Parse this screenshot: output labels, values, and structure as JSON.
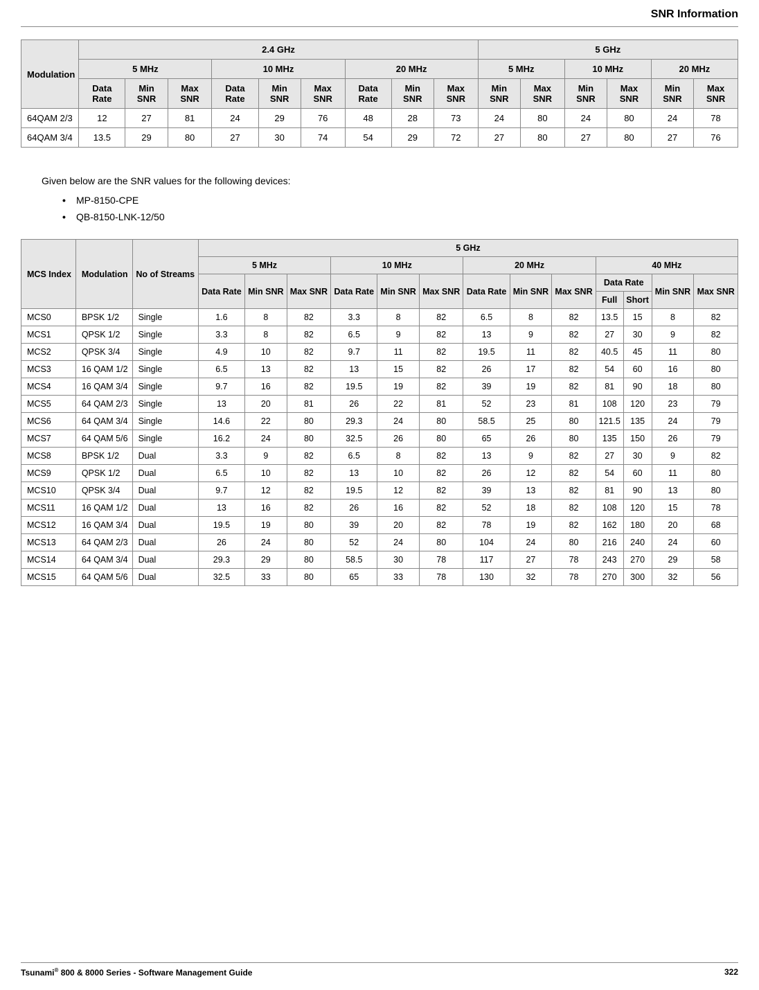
{
  "title": "SNR Information",
  "table1": {
    "top_headers": {
      "modulation": "Modulation",
      "band24": "2.4 GHz",
      "band5": "5 GHz"
    },
    "bw_headers": [
      "5 MHz",
      "10 MHz",
      "20 MHz",
      "5 MHz",
      "10 MHz",
      "20 MHz"
    ],
    "col_headers": {
      "dr": "Data Rate",
      "min": "Min SNR",
      "max": "Max SNR"
    },
    "rows": [
      {
        "mod": "64QAM 2/3",
        "v": [
          "12",
          "27",
          "81",
          "24",
          "29",
          "76",
          "48",
          "28",
          "73",
          "24",
          "80",
          "24",
          "80",
          "24",
          "78"
        ]
      },
      {
        "mod": "64QAM 3/4",
        "v": [
          "13.5",
          "29",
          "80",
          "27",
          "30",
          "74",
          "54",
          "29",
          "72",
          "27",
          "80",
          "27",
          "80",
          "27",
          "76"
        ]
      }
    ]
  },
  "intro": "Given below are the SNR values for the following devices:",
  "devices": [
    "MP-8150-CPE",
    "QB-8150-LNK-12/50"
  ],
  "table2": {
    "top_headers": {
      "mcs": "MCS Index",
      "mod": "Modulation",
      "streams": "No of Streams",
      "band": "5 GHz"
    },
    "bw_headers": [
      "5 MHz",
      "10 MHz",
      "20 MHz",
      "40 MHz"
    ],
    "col_headers": {
      "dr": "Data Rate",
      "min": "Min SNR",
      "max": "Max SNR",
      "full": "Full",
      "short": "Short"
    },
    "rows": [
      {
        "m": "MCS0",
        "mod": "BPSK 1/2",
        "s": "Single",
        "v": [
          "1.6",
          "8",
          "82",
          "3.3",
          "8",
          "82",
          "6.5",
          "8",
          "82",
          "13.5",
          "15",
          "8",
          "82"
        ]
      },
      {
        "m": "MCS1",
        "mod": "QPSK 1/2",
        "s": "Single",
        "v": [
          "3.3",
          "8",
          "82",
          "6.5",
          "9",
          "82",
          "13",
          "9",
          "82",
          "27",
          "30",
          "9",
          "82"
        ]
      },
      {
        "m": "MCS2",
        "mod": "QPSK 3/4",
        "s": "Single",
        "v": [
          "4.9",
          "10",
          "82",
          "9.7",
          "11",
          "82",
          "19.5",
          "11",
          "82",
          "40.5",
          "45",
          "11",
          "80"
        ]
      },
      {
        "m": "MCS3",
        "mod": "16 QAM 1/2",
        "s": "Single",
        "v": [
          "6.5",
          "13",
          "82",
          "13",
          "15",
          "82",
          "26",
          "17",
          "82",
          "54",
          "60",
          "16",
          "80"
        ]
      },
      {
        "m": "MCS4",
        "mod": "16 QAM 3/4",
        "s": "Single",
        "v": [
          "9.7",
          "16",
          "82",
          "19.5",
          "19",
          "82",
          "39",
          "19",
          "82",
          "81",
          "90",
          "18",
          "80"
        ]
      },
      {
        "m": "MCS5",
        "mod": "64 QAM 2/3",
        "s": "Single",
        "v": [
          "13",
          "20",
          "81",
          "26",
          "22",
          "81",
          "52",
          "23",
          "81",
          "108",
          "120",
          "23",
          "79"
        ]
      },
      {
        "m": "MCS6",
        "mod": "64 QAM 3/4",
        "s": "Single",
        "v": [
          "14.6",
          "22",
          "80",
          "29.3",
          "24",
          "80",
          "58.5",
          "25",
          "80",
          "121.5",
          "135",
          "24",
          "79"
        ]
      },
      {
        "m": "MCS7",
        "mod": "64 QAM 5/6",
        "s": "Single",
        "v": [
          "16.2",
          "24",
          "80",
          "32.5",
          "26",
          "80",
          "65",
          "26",
          "80",
          "135",
          "150",
          "26",
          "79"
        ]
      },
      {
        "m": "MCS8",
        "mod": "BPSK 1/2",
        "s": "Dual",
        "v": [
          "3.3",
          "9",
          "82",
          "6.5",
          "8",
          "82",
          "13",
          "9",
          "82",
          "27",
          "30",
          "9",
          "82"
        ]
      },
      {
        "m": "MCS9",
        "mod": "QPSK 1/2",
        "s": "Dual",
        "v": [
          "6.5",
          "10",
          "82",
          "13",
          "10",
          "82",
          "26",
          "12",
          "82",
          "54",
          "60",
          "11",
          "80"
        ]
      },
      {
        "m": "MCS10",
        "mod": "QPSK 3/4",
        "s": "Dual",
        "v": [
          "9.7",
          "12",
          "82",
          "19.5",
          "12",
          "82",
          "39",
          "13",
          "82",
          "81",
          "90",
          "13",
          "80"
        ]
      },
      {
        "m": "MCS11",
        "mod": "16 QAM 1/2",
        "s": "Dual",
        "v": [
          "13",
          "16",
          "82",
          "26",
          "16",
          "82",
          "52",
          "18",
          "82",
          "108",
          "120",
          "15",
          "78"
        ]
      },
      {
        "m": "MCS12",
        "mod": "16 QAM 3/4",
        "s": "Dual",
        "v": [
          "19.5",
          "19",
          "80",
          "39",
          "20",
          "82",
          "78",
          "19",
          "82",
          "162",
          "180",
          "20",
          "68"
        ]
      },
      {
        "m": "MCS13",
        "mod": "64 QAM 2/3",
        "s": "Dual",
        "v": [
          "26",
          "24",
          "80",
          "52",
          "24",
          "80",
          "104",
          "24",
          "80",
          "216",
          "240",
          "24",
          "60"
        ]
      },
      {
        "m": "MCS14",
        "mod": "64 QAM 3/4",
        "s": "Dual",
        "v": [
          "29.3",
          "29",
          "80",
          "58.5",
          "30",
          "78",
          "117",
          "27",
          "78",
          "243",
          "270",
          "29",
          "58"
        ]
      },
      {
        "m": "MCS15",
        "mod": "64 QAM 5/6",
        "s": "Dual",
        "v": [
          "32.5",
          "33",
          "80",
          "65",
          "33",
          "78",
          "130",
          "32",
          "78",
          "270",
          "300",
          "32",
          "56"
        ]
      }
    ]
  },
  "footer": {
    "left_a": "Tsunami",
    "left_b": " 800 & 8000 Series - Software Management Guide",
    "page": "322"
  },
  "colors": {
    "header_bg": "#e6e6e6",
    "border": "#888888",
    "text": "#000000",
    "bg": "#ffffff"
  }
}
